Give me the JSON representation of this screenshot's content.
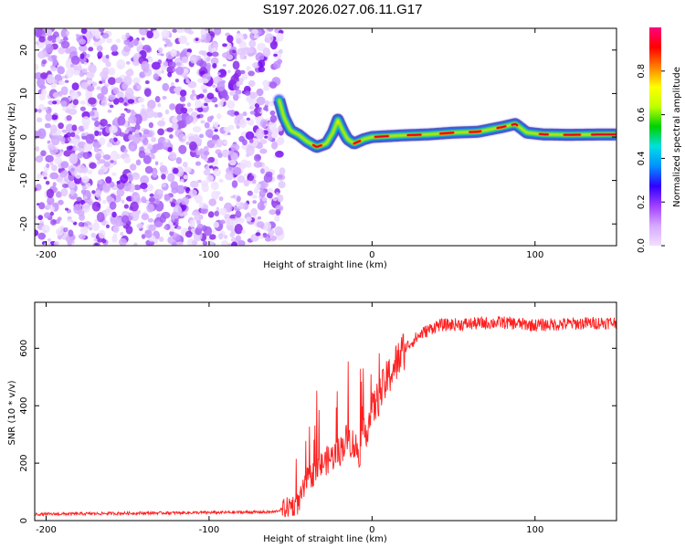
{
  "chart_data": [
    {
      "type": "heatmap",
      "title": "S197.2026.027.06.11.G17",
      "xlabel": "Height of straight line (km)",
      "ylabel": "Frequency (Hz)",
      "xlim": [
        -207,
        150
      ],
      "ylim": [
        -25,
        25
      ],
      "xticks": [
        -200,
        -100,
        0,
        100
      ],
      "yticks": [
        -20,
        -10,
        0,
        10,
        20
      ],
      "colorbar": {
        "label": "Normalized spectral amplitude",
        "range": [
          0,
          1
        ],
        "ticks": [
          0.0,
          0.2,
          0.4,
          0.6,
          0.8
        ],
        "colors": [
          "#f0e0ff",
          "#d8a8ff",
          "#a040ff",
          "#3000ff",
          "#0090ff",
          "#00e0e0",
          "#00d000",
          "#c0ff00",
          "#ffff00",
          "#ff8000",
          "#ff0000",
          "#ff0080"
        ]
      },
      "noise_region_x": [
        -207,
        -55
      ],
      "ridge": [
        {
          "x": -57,
          "f": 8.5
        },
        {
          "x": -54,
          "f": 4.5
        },
        {
          "x": -50,
          "f": 1.5
        },
        {
          "x": -45,
          "f": 0.5
        },
        {
          "x": -40,
          "f": -1.0
        },
        {
          "x": -34,
          "f": -2.3
        },
        {
          "x": -28,
          "f": -1.5
        },
        {
          "x": -24,
          "f": 1.0
        },
        {
          "x": -21,
          "f": 4.0
        },
        {
          "x": -18,
          "f": 1.5
        },
        {
          "x": -15,
          "f": -0.5
        },
        {
          "x": -11,
          "f": -1.5
        },
        {
          "x": -5,
          "f": -0.5
        },
        {
          "x": 0,
          "f": 0.0
        },
        {
          "x": 10,
          "f": 0.2
        },
        {
          "x": 20,
          "f": 0.4
        },
        {
          "x": 35,
          "f": 0.6
        },
        {
          "x": 50,
          "f": 1.0
        },
        {
          "x": 65,
          "f": 1.2
        },
        {
          "x": 80,
          "f": 2.3
        },
        {
          "x": 88,
          "f": 3.0
        },
        {
          "x": 95,
          "f": 1.0
        },
        {
          "x": 105,
          "f": 0.6
        },
        {
          "x": 120,
          "f": 0.5
        },
        {
          "x": 150,
          "f": 0.6
        }
      ]
    },
    {
      "type": "line",
      "xlabel": "Height of straight line (km)",
      "ylabel": "SNR (10 * v/v)",
      "xlim": [
        -207,
        150
      ],
      "ylim": [
        0,
        760
      ],
      "xticks": [
        -200,
        -100,
        0,
        100
      ],
      "yticks": [
        0,
        200,
        400,
        600
      ],
      "color": "#ff2020",
      "envelope": [
        {
          "x": -207,
          "snr": 22
        },
        {
          "x": -160,
          "snr": 25
        },
        {
          "x": -100,
          "snr": 28
        },
        {
          "x": -60,
          "snr": 30
        },
        {
          "x": -45,
          "snr": 60
        },
        {
          "x": -40,
          "snr": 140
        },
        {
          "x": -30,
          "snr": 200
        },
        {
          "x": -20,
          "snr": 240
        },
        {
          "x": -15,
          "snr": 290
        },
        {
          "x": -8,
          "snr": 240
        },
        {
          "x": 0,
          "snr": 380
        },
        {
          "x": 10,
          "snr": 500
        },
        {
          "x": 20,
          "snr": 600
        },
        {
          "x": 30,
          "snr": 650
        },
        {
          "x": 40,
          "snr": 680
        },
        {
          "x": 60,
          "snr": 685
        },
        {
          "x": 80,
          "snr": 690
        },
        {
          "x": 100,
          "snr": 680
        },
        {
          "x": 120,
          "snr": 685
        },
        {
          "x": 150,
          "snr": 690
        }
      ]
    }
  ]
}
